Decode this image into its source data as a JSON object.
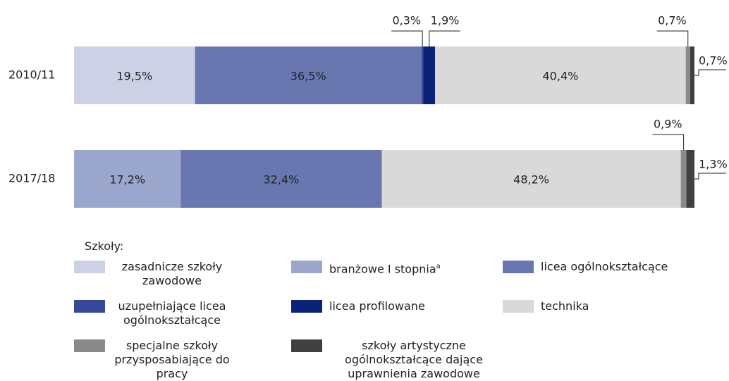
{
  "chart_data": {
    "type": "stacked-bar-horizontal",
    "categories": [
      "2010/11",
      "2017/18"
    ],
    "xlim": [
      0,
      100
    ],
    "legend_title": "Szkoły:",
    "series": [
      {
        "name": "zasadnicze szkoły zawodowe",
        "color": "#cdd1e6",
        "values": [
          19.5,
          null
        ],
        "value_labels": [
          "19,5%",
          null
        ]
      },
      {
        "name": "branżowe I stopnia",
        "superscript": "a",
        "color": "#9aa6cc",
        "values": [
          null,
          17.2
        ],
        "value_labels": [
          null,
          "17,2%"
        ]
      },
      {
        "name": "licea ogólnokształcące",
        "color": "#6877b0",
        "values": [
          36.5,
          32.4
        ],
        "value_labels": [
          "36,5%",
          "32,4%"
        ]
      },
      {
        "name": "uzupełniające licea ogólnokształcące",
        "color": "#35489a",
        "values": [
          0.3,
          null
        ],
        "value_labels": [
          "0,3%",
          null
        ]
      },
      {
        "name": "licea profilowane",
        "color": "#0a2277",
        "values": [
          1.9,
          null
        ],
        "value_labels": [
          "1,9%",
          null
        ]
      },
      {
        "name": "technika",
        "color": "#d9d9d9",
        "values": [
          40.4,
          48.2
        ],
        "value_labels": [
          "40,4%",
          "48,2%"
        ]
      },
      {
        "name": "specjalne szkoły przysposabiające do pracy",
        "color": "#8a8a8a",
        "values": [
          0.7,
          0.9
        ],
        "value_labels": [
          "0,7%",
          "0,9%"
        ]
      },
      {
        "name": "szkoły artystyczne ogólnokształcące dające uprawnienia zawodowe",
        "color": "#404040",
        "values": [
          0.7,
          1.3
        ],
        "value_labels": [
          "0,7%",
          "1,3%"
        ]
      }
    ]
  }
}
